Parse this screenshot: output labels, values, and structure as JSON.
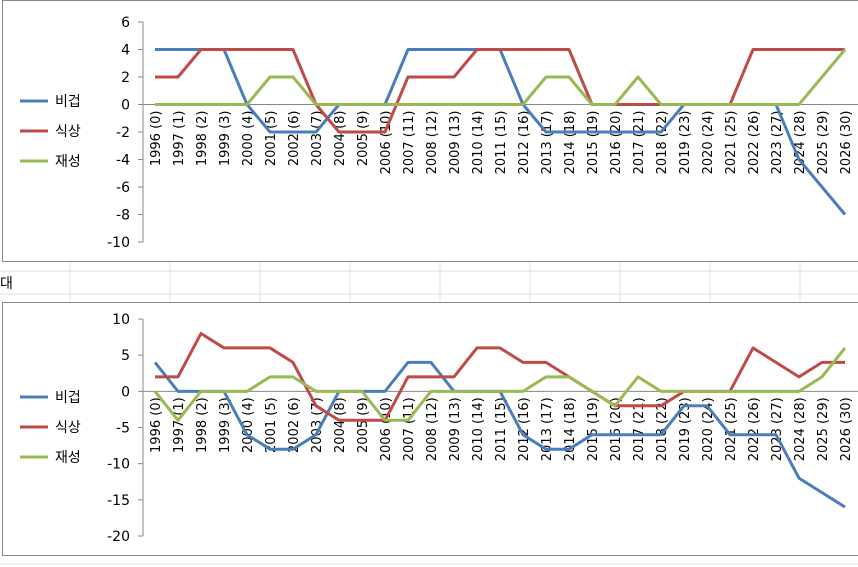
{
  "sheet_text": "대",
  "chart_data": [
    {
      "type": "line",
      "categories": [
        "1996 (0)",
        "1997 (1)",
        "1998 (2)",
        "1999 (3)",
        "2000 (4)",
        "2001 (5)",
        "2002 (6)",
        "2003 (7)",
        "2004 (8)",
        "2005 (9)",
        "2006 (10)",
        "2007 (11)",
        "2008 (12)",
        "2009 (13)",
        "2010 (14)",
        "2011 (15)",
        "2012 (16)",
        "2013 (17)",
        "2014 (18)",
        "2015 (19)",
        "2016 (20)",
        "2017 (21)",
        "2018 (22)",
        "2019 (23)",
        "2020 (24)",
        "2021 (25)",
        "2022 (26)",
        "2023 (27)",
        "2024 (28)",
        "2025 (29)",
        "2026 (30)"
      ],
      "series": [
        {
          "name": "비겁",
          "color": "#4a7ebb",
          "values": [
            4,
            4,
            4,
            4,
            0,
            -2,
            -2,
            -2,
            0,
            0,
            0,
            4,
            4,
            4,
            4,
            4,
            0,
            -2,
            -2,
            -2,
            -2,
            -2,
            -2,
            0,
            0,
            0,
            0,
            0,
            -4,
            -6,
            -8
          ]
        },
        {
          "name": "식상",
          "color": "#be4b48",
          "values": [
            2,
            2,
            4,
            4,
            4,
            4,
            4,
            0,
            -2,
            -2,
            -2,
            2,
            2,
            2,
            4,
            4,
            4,
            4,
            4,
            0,
            0,
            0,
            0,
            0,
            0,
            0,
            4,
            4,
            4,
            4,
            4
          ]
        },
        {
          "name": "재성",
          "color": "#98b954",
          "values": [
            0,
            0,
            0,
            0,
            0,
            2,
            2,
            0,
            0,
            0,
            0,
            0,
            0,
            0,
            0,
            0,
            0,
            2,
            2,
            0,
            0,
            2,
            0,
            0,
            0,
            0,
            0,
            0,
            0,
            2,
            4
          ]
        }
      ],
      "ylim": [
        -10,
        6
      ],
      "yticks": [
        -10,
        -8,
        -6,
        -4,
        -2,
        0,
        2,
        4,
        6
      ],
      "legend": "left"
    },
    {
      "type": "line",
      "categories": [
        "1996 (0)",
        "1997 (1)",
        "1998 (2)",
        "1999 (3)",
        "2000 (4)",
        "2001 (5)",
        "2002 (6)",
        "2003 (7)",
        "2004 (8)",
        "2005 (9)",
        "2006 (10)",
        "2007 (11)",
        "2008 (12)",
        "2009 (13)",
        "2010 (14)",
        "2011 (15)",
        "2012 (16)",
        "2013 (17)",
        "2014 (18)",
        "2015 (19)",
        "2016 (20)",
        "2017 (21)",
        "2018 (22)",
        "2019 (23)",
        "2020 (24)",
        "2021 (25)",
        "2022 (26)",
        "2023 (27)",
        "2024 (28)",
        "2025 (29)",
        "2026 (30)"
      ],
      "series": [
        {
          "name": "비겁",
          "color": "#4a7ebb",
          "values": [
            4,
            0,
            0,
            0,
            -6,
            -8,
            -8,
            -6,
            0,
            0,
            0,
            4,
            4,
            0,
            0,
            0,
            -6,
            -8,
            -8,
            -6,
            -6,
            -6,
            -6,
            -2,
            -2,
            -6,
            -6,
            -6,
            -12,
            -14,
            -16
          ]
        },
        {
          "name": "식상",
          "color": "#be4b48",
          "values": [
            2,
            2,
            8,
            6,
            6,
            6,
            4,
            -2,
            -4,
            -4,
            -4,
            2,
            2,
            2,
            6,
            6,
            4,
            4,
            2,
            0,
            -2,
            -2,
            -2,
            0,
            0,
            0,
            6,
            4,
            2,
            4,
            4
          ]
        },
        {
          "name": "재성",
          "color": "#98b954",
          "values": [
            0,
            -4,
            0,
            0,
            0,
            2,
            2,
            0,
            0,
            0,
            -4,
            -4,
            0,
            0,
            0,
            0,
            0,
            2,
            2,
            0,
            -2,
            2,
            0,
            0,
            0,
            0,
            0,
            0,
            0,
            2,
            6
          ]
        }
      ],
      "ylim": [
        -20,
        10
      ],
      "yticks": [
        -20,
        -15,
        -10,
        -5,
        0,
        5,
        10
      ],
      "legend": "left"
    }
  ]
}
